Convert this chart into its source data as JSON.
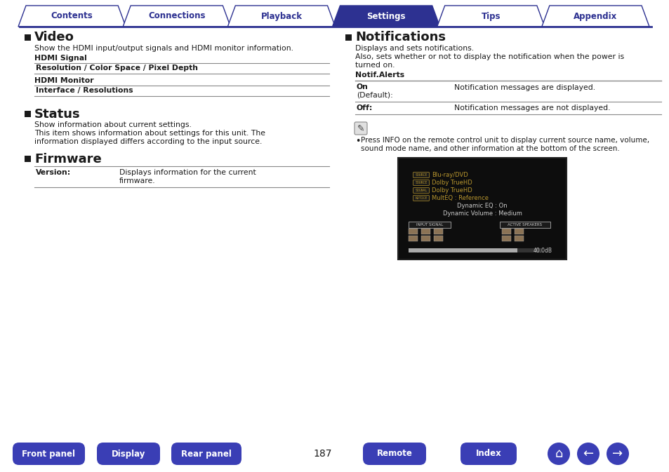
{
  "bg_color": "#ffffff",
  "tab_labels": [
    "Contents",
    "Connections",
    "Playback",
    "Settings",
    "Tips",
    "Appendix"
  ],
  "tab_active_idx": 3,
  "tab_active_color": "#2d3191",
  "tab_inactive_color": "#ffffff",
  "tab_text_color_active": "#ffffff",
  "tab_text_color_inactive": "#2d3191",
  "tab_border_color": "#2d3191",
  "tab_line_color": "#2d3191",
  "bottom_buttons": [
    "Front panel",
    "Display",
    "Rear panel",
    "Remote",
    "Index"
  ],
  "page_number": "187",
  "bottom_btn_color": "#3a3eb5",
  "bottom_btn_text_color": "#ffffff",
  "section_square_color": "#1a1a1a",
  "text_color": "#1a1a1a",
  "bold_color": "#1a1a1a",
  "table_border_color": "#888888",
  "screen_bg": "#0d0d0d",
  "screen_text_label_color": "#b8962e",
  "screen_text_plain_color": "#cccccc"
}
